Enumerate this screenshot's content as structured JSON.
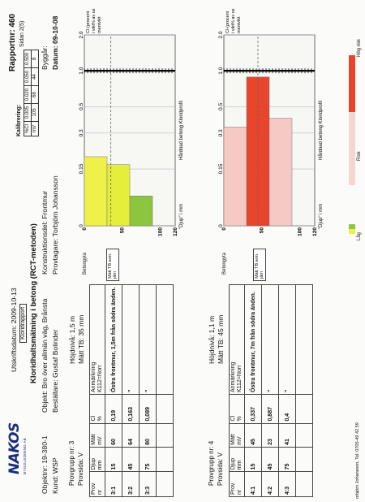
{
  "header": {
    "report_nr": "Rapportnr: 460",
    "page": "Sidan 2(5)",
    "print_date": "Utskriftsdatum: 2009-10-13",
    "report_type": "Kloridrapport",
    "title": "Kloridhaltsmätning i betong (RCT-metoden)",
    "object_nr": "Objektnr: 19-380-1",
    "object": "Objekt: Bro över allmän väg, Brånsta",
    "construction_part": "Konstruktionsdel: Frontmur",
    "build_year": "Byggår:",
    "client": "Kund: WSP",
    "orderer": "Beställare: Gustaf Bolinder",
    "sampler": "Provtagare: Torbjörn Johansson",
    "date": "Datum: 09-10-08"
  },
  "calibration": {
    "label": "Kalibrering:",
    "row1_head": "%Cl",
    "row1": [
      "0.005",
      "0.020",
      "0.050",
      "0.500"
    ],
    "row2_head": "mV",
    "row2": [
      "105",
      "68",
      "44",
      "8"
    ]
  },
  "logo": {
    "name": "NAKOS",
    "sub": "BYGGLEDNING AB"
  },
  "groups": [
    {
      "group": "Provgrupp nr: 3",
      "side": "Provsida: V",
      "height": "Höjdnivå: 1,5  m",
      "cover": "Mätt TB: 35    mm",
      "cols": [
        "Prov\nnr",
        "Djup\nmm",
        "Mätt\nmV",
        "Cl\n%",
        "Anmärkning\nK112=Norr"
      ],
      "col_heads": [
        [
          "Prov",
          "nr"
        ],
        [
          "Djup",
          "mm"
        ],
        [
          "Mätt",
          "mV"
        ],
        [
          "Cl",
          "%"
        ],
        [
          "Anmärkning",
          "K112=Norr"
        ]
      ],
      "rows": [
        [
          "3:1",
          "15",
          "60",
          "0,19",
          "Östra frontmur, 1,5m från södra änden."
        ],
        [
          "3:2",
          "45",
          "64",
          "0,163",
          "\""
        ],
        [
          "3:3",
          "75",
          "80",
          "0,089",
          "\""
        ]
      ],
      "chart_data": {
        "type": "bar",
        "x_scale": "log",
        "xlabel": "Hårdnad betong Kloridprofil",
        "ylabel_top": "Betongyta",
        "ylabel_bottom": "\"Djup\" i mm",
        "xticks": [
          "0",
          "0.15",
          "0.3",
          "0.5",
          "1.0",
          "2.0"
        ],
        "yticks": [
          "0",
          "50",
          "100",
          "120"
        ],
        "right_label": "Cl-(procent i vikt% av cementvikt",
        "tb_label": "Mätt TB arm. järn",
        "depth_ranges": [
          [
            0,
            30
          ],
          [
            30,
            60
          ],
          [
            60,
            90
          ]
        ],
        "values": [
          0.19,
          0.163,
          0.089
        ],
        "colors": [
          "#f0f04a",
          "#e6ee3c",
          "#8cc63f"
        ],
        "cover_depth": 35,
        "threshold": 1.0
      }
    },
    {
      "group": "Provgrupp nr: 4",
      "side": "Provsida: V",
      "height": "Höjdnivå: 1,1  m",
      "cover": "Mätt TB: 45    mm",
      "col_heads": [
        [
          "Prov",
          "nr"
        ],
        [
          "Djup",
          "mm"
        ],
        [
          "Mätt",
          "mV"
        ],
        [
          "Cl",
          "%"
        ],
        [
          "Anmärkning",
          "K112=Norr"
        ]
      ],
      "rows": [
        [
          "4:1",
          "15",
          "45",
          "0,337",
          "Östra frontmur, 7m från södra änden."
        ],
        [
          "4:2",
          "45",
          "23",
          "0,887",
          "\""
        ],
        [
          "4:3",
          "75",
          "41",
          "0,4",
          "\""
        ]
      ],
      "chart_data": {
        "type": "bar",
        "x_scale": "log",
        "xlabel": "Hårdnad betong Kloridprofil",
        "ylabel_top": "Betongyta",
        "ylabel_bottom": "\"Djup\" i mm",
        "xticks": [
          "0",
          "0.15",
          "0.3",
          "0.5",
          "1.0",
          "2.0"
        ],
        "yticks": [
          "0",
          "50",
          "100",
          "120"
        ],
        "right_label": "Cl-(procent i vikt% av cementvikt",
        "tb_label": "Mätt TB arm. järn",
        "depth_ranges": [
          [
            0,
            30
          ],
          [
            30,
            60
          ],
          [
            60,
            90
          ]
        ],
        "values": [
          0.337,
          0.887,
          0.4
        ],
        "colors": [
          "#f7c9c4",
          "#e8452c",
          "#f7c9c4"
        ],
        "cover_depth": 45,
        "threshold": 1.0
      }
    }
  ],
  "legend": {
    "low": "Låg",
    "risk": "Risk",
    "high": "Hög risk",
    "colors": [
      "#f0f04a",
      "#8cc63f",
      "#f7c9c4",
      "#e8452c"
    ]
  },
  "footer": "orbjörn Johansson, Tel: 0705-49 42 59"
}
